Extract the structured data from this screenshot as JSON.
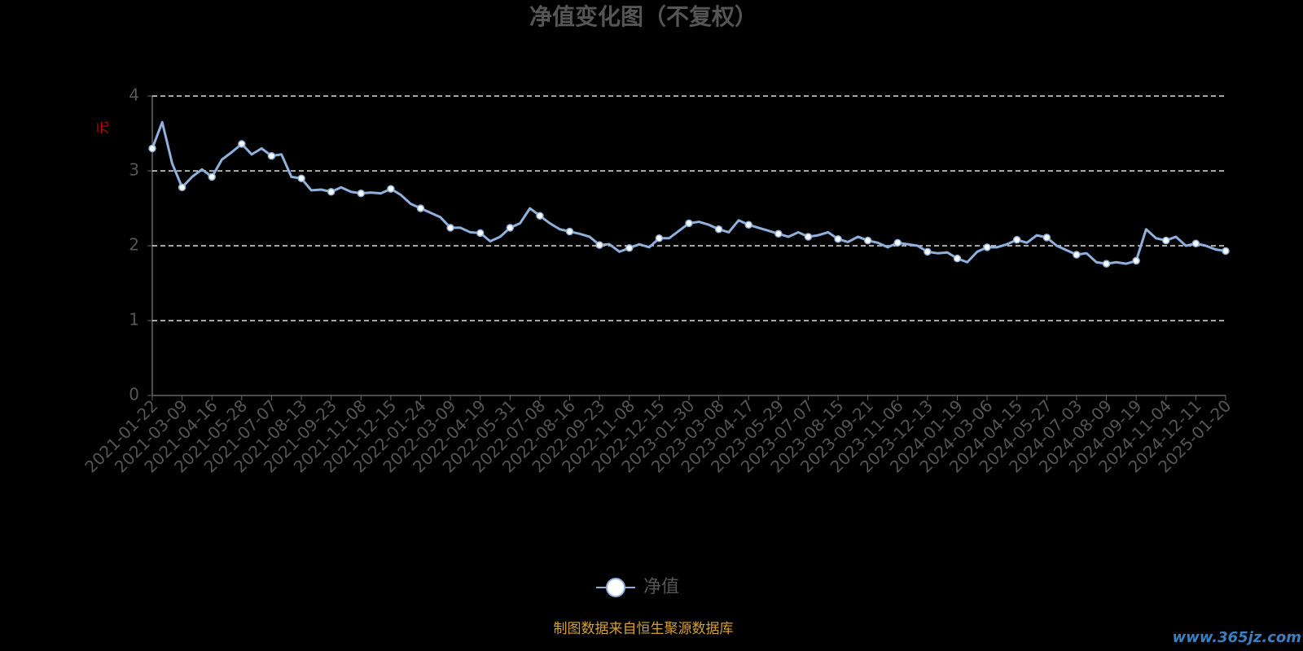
{
  "chart_data": {
    "type": "line",
    "title": "净值变化图（不复权）",
    "y_label": "元",
    "source_note": "制图数据来自恒生聚源数据库",
    "watermark": "www.365jz.com",
    "categories": [
      "2021-01-22",
      null,
      null,
      "2021-03-09",
      null,
      null,
      "2021-04-16",
      null,
      null,
      "2021-05-28",
      null,
      null,
      "2021-07-07",
      null,
      null,
      "2021-08-13",
      null,
      null,
      "2021-09-23",
      null,
      null,
      "2021-11-08",
      null,
      null,
      "2021-12-15",
      null,
      null,
      "2022-01-24",
      null,
      null,
      "2022-03-09",
      null,
      null,
      "2022-04-19",
      null,
      null,
      "2022-05-31",
      null,
      null,
      "2022-07-08",
      null,
      null,
      "2022-08-16",
      null,
      null,
      "2022-09-23",
      null,
      null,
      "2022-11-08",
      null,
      null,
      "2022-12-15",
      null,
      null,
      "2023-01-30",
      null,
      null,
      "2023-03-08",
      null,
      null,
      "2023-04-17",
      null,
      null,
      "2023-05-29",
      null,
      null,
      "2023-07-07",
      null,
      null,
      "2023-08-15",
      null,
      null,
      "2023-09-21",
      null,
      null,
      "2023-11-06",
      null,
      null,
      "2023-12-13",
      null,
      null,
      "2024-01-19",
      null,
      null,
      "2024-03-06",
      null,
      null,
      "2024-04-15",
      null,
      null,
      "2024-05-27",
      null,
      null,
      "2024-07-03",
      null,
      null,
      "2024-08-09",
      null,
      null,
      "2024-09-19",
      null,
      null,
      "2024-11-04",
      null,
      null,
      "2024-12-11",
      null,
      null,
      "2025-01-20"
    ],
    "series": [
      {
        "name": "净值",
        "color": "#8fb0dc",
        "values": [
          3.3,
          3.65,
          3.1,
          2.78,
          2.92,
          3.02,
          2.92,
          3.15,
          3.25,
          3.36,
          3.22,
          3.3,
          3.2,
          3.22,
          2.92,
          2.9,
          2.74,
          2.75,
          2.72,
          2.78,
          2.72,
          2.7,
          2.71,
          2.7,
          2.76,
          2.68,
          2.56,
          2.5,
          2.44,
          2.38,
          2.24,
          2.24,
          2.18,
          2.17,
          2.06,
          2.12,
          2.24,
          2.3,
          2.5,
          2.4,
          2.3,
          2.22,
          2.19,
          2.16,
          2.12,
          2.01,
          2.02,
          1.92,
          1.97,
          2.02,
          1.98,
          2.1,
          2.1,
          2.2,
          2.3,
          2.32,
          2.28,
          2.22,
          2.18,
          2.34,
          2.28,
          2.24,
          2.2,
          2.16,
          2.12,
          2.18,
          2.12,
          2.14,
          2.18,
          2.09,
          2.05,
          2.12,
          2.07,
          2.04,
          1.98,
          2.04,
          2.02,
          2.0,
          1.92,
          1.9,
          1.91,
          1.83,
          1.78,
          1.92,
          1.98,
          1.98,
          2.02,
          2.08,
          2.04,
          2.14,
          2.11,
          2.0,
          1.94,
          1.88,
          1.9,
          1.78,
          1.76,
          1.78,
          1.76,
          1.8,
          2.22,
          2.1,
          2.07,
          2.12,
          2.0,
          2.03,
          2.0,
          1.95,
          1.93
        ]
      }
    ],
    "ylim": [
      0,
      4
    ],
    "yticks": [
      0,
      1,
      2,
      3,
      4
    ],
    "grid": true
  }
}
